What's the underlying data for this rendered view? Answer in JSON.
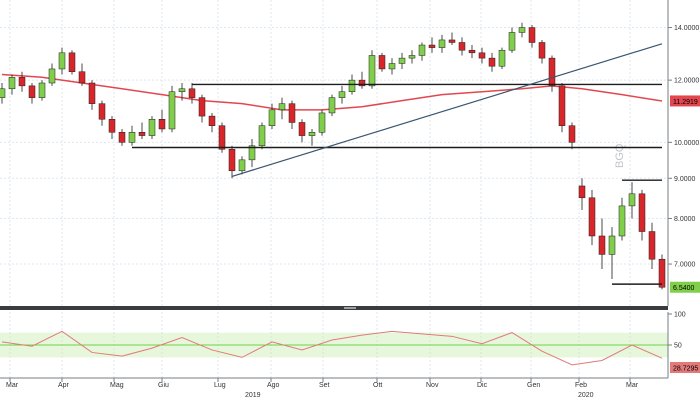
{
  "chart_data": {
    "type": "candlestick",
    "title": "",
    "xlabel": "",
    "ylabel": "",
    "grid": true,
    "price_scale": "log",
    "ylim": [
      6.3,
      15.0
    ],
    "y_ticks": [
      "14.0000",
      "12.0000",
      "10.0000",
      "9.0000",
      "8.0000",
      "7.0000"
    ],
    "y_tick_values": [
      14,
      12,
      10,
      9,
      8,
      7
    ],
    "x_months": [
      "Mar",
      "Apr",
      "Mag",
      "Giu",
      "Lug",
      "Ago",
      "Set",
      "Ott",
      "Nov",
      "Dic",
      "Gen",
      "Feb",
      "Mar"
    ],
    "years": [
      "2019",
      "2020"
    ],
    "last_price_label": "6.5400",
    "moving_average_label": "11.2919",
    "oscillator_label": "28.7295",
    "oscillator_ticks": [
      "100",
      "50"
    ],
    "watermark": "BGQ",
    "series": [
      {
        "type": "ohlc",
        "values": [
          [
            0,
            11.4,
            11.9,
            11.2,
            11.7
          ],
          [
            1,
            11.7,
            12.2,
            11.5,
            12.1
          ],
          [
            2,
            12.1,
            12.3,
            11.6,
            11.8
          ],
          [
            3,
            11.8,
            11.9,
            11.2,
            11.4
          ],
          [
            4,
            11.4,
            12.0,
            11.3,
            11.9
          ],
          [
            5,
            11.9,
            12.6,
            11.8,
            12.4
          ],
          [
            6,
            12.4,
            13.2,
            12.2,
            13.0
          ],
          [
            7,
            13.0,
            13.1,
            12.2,
            12.3
          ],
          [
            8,
            12.3,
            12.6,
            11.8,
            11.9
          ],
          [
            9,
            11.9,
            12.0,
            11.0,
            11.2
          ],
          [
            10,
            11.2,
            11.3,
            10.5,
            10.7
          ],
          [
            11,
            10.7,
            10.8,
            10.1,
            10.3
          ],
          [
            12,
            10.3,
            10.4,
            9.9,
            10.0
          ],
          [
            13,
            10.0,
            10.5,
            9.9,
            10.3
          ],
          [
            14,
            10.3,
            10.6,
            10.1,
            10.2
          ],
          [
            15,
            10.2,
            10.8,
            10.1,
            10.7
          ],
          [
            16,
            10.7,
            11.0,
            10.3,
            10.4
          ],
          [
            17,
            10.4,
            11.8,
            10.3,
            11.6
          ],
          [
            18,
            11.6,
            11.9,
            11.3,
            11.7
          ],
          [
            19,
            11.7,
            11.9,
            11.2,
            11.4
          ],
          [
            20,
            11.4,
            11.5,
            10.6,
            10.8
          ],
          [
            21,
            10.8,
            10.9,
            10.3,
            10.5
          ],
          [
            22,
            10.5,
            10.6,
            9.7,
            9.8
          ],
          [
            23,
            9.8,
            9.9,
            9.0,
            9.2
          ],
          [
            24,
            9.2,
            9.6,
            9.1,
            9.5
          ],
          [
            25,
            9.5,
            10.1,
            9.3,
            9.9
          ],
          [
            26,
            9.9,
            10.6,
            9.8,
            10.5
          ],
          [
            27,
            10.5,
            11.2,
            10.4,
            11.0
          ],
          [
            28,
            11.0,
            11.4,
            10.7,
            11.2
          ],
          [
            29,
            11.2,
            11.3,
            10.4,
            10.6
          ],
          [
            30,
            10.6,
            10.7,
            10.0,
            10.2
          ],
          [
            31,
            10.2,
            10.4,
            9.9,
            10.3
          ],
          [
            32,
            10.3,
            11.0,
            10.2,
            10.9
          ],
          [
            33,
            10.9,
            11.5,
            10.8,
            11.4
          ],
          [
            34,
            11.4,
            11.8,
            11.2,
            11.6
          ],
          [
            35,
            11.6,
            12.2,
            11.5,
            12.0
          ],
          [
            36,
            12.0,
            12.3,
            11.7,
            11.8
          ],
          [
            37,
            11.8,
            13.1,
            11.7,
            12.9
          ],
          [
            38,
            12.9,
            13.0,
            12.3,
            12.4
          ],
          [
            39,
            12.4,
            12.8,
            12.2,
            12.6
          ],
          [
            40,
            12.6,
            13.0,
            12.4,
            12.8
          ],
          [
            41,
            12.8,
            13.1,
            12.6,
            12.9
          ],
          [
            42,
            12.9,
            13.4,
            12.7,
            13.3
          ],
          [
            43,
            13.3,
            13.6,
            13.0,
            13.2
          ],
          [
            44,
            13.2,
            13.7,
            13.0,
            13.5
          ],
          [
            45,
            13.5,
            13.8,
            13.3,
            13.4
          ],
          [
            46,
            13.4,
            13.6,
            12.9,
            13.1
          ],
          [
            47,
            13.1,
            13.3,
            12.8,
            13.0
          ],
          [
            48,
            13.0,
            13.2,
            12.6,
            12.8
          ],
          [
            49,
            12.8,
            13.0,
            12.3,
            12.5
          ],
          [
            50,
            12.5,
            13.2,
            12.4,
            13.1
          ],
          [
            51,
            13.1,
            14.0,
            13.0,
            13.8
          ],
          [
            52,
            13.8,
            14.2,
            13.6,
            14.0
          ],
          [
            53,
            14.0,
            14.1,
            13.2,
            13.4
          ],
          [
            54,
            13.4,
            13.5,
            12.6,
            12.8
          ],
          [
            55,
            12.8,
            12.9,
            11.6,
            11.8
          ],
          [
            56,
            11.8,
            11.9,
            10.3,
            10.5
          ],
          [
            57,
            10.5,
            10.6,
            9.8,
            10.0
          ],
          [
            58,
            8.8,
            9.0,
            8.2,
            8.5
          ],
          [
            59,
            8.5,
            8.7,
            7.4,
            7.6
          ],
          [
            60,
            7.6,
            8.0,
            6.9,
            7.2
          ],
          [
            61,
            7.2,
            7.8,
            6.7,
            7.6
          ],
          [
            62,
            7.6,
            8.5,
            7.5,
            8.3
          ],
          [
            63,
            8.3,
            8.9,
            8.0,
            8.6
          ],
          [
            64,
            8.6,
            8.7,
            7.5,
            7.7
          ],
          [
            65,
            7.7,
            7.9,
            6.9,
            7.1
          ],
          [
            66,
            7.1,
            7.2,
            6.5,
            6.54
          ]
        ]
      },
      {
        "type": "moving_average",
        "color": "#e2474f",
        "values": [
          [
            0,
            12.2
          ],
          [
            4,
            12.1
          ],
          [
            8,
            11.9
          ],
          [
            12,
            11.7
          ],
          [
            16,
            11.5
          ],
          [
            20,
            11.3
          ],
          [
            24,
            11.2
          ],
          [
            28,
            11.0
          ],
          [
            32,
            11.0
          ],
          [
            36,
            11.1
          ],
          [
            40,
            11.3
          ],
          [
            44,
            11.5
          ],
          [
            48,
            11.6
          ],
          [
            52,
            11.7
          ],
          [
            55,
            11.8
          ],
          [
            58,
            11.7
          ],
          [
            62,
            11.5
          ],
          [
            66,
            11.29
          ]
        ]
      },
      {
        "type": "oscillator",
        "color": "#e27a7a",
        "ylim": [
          0,
          100
        ],
        "values": [
          [
            0,
            55
          ],
          [
            3,
            48
          ],
          [
            6,
            72
          ],
          [
            9,
            38
          ],
          [
            12,
            32
          ],
          [
            15,
            45
          ],
          [
            18,
            62
          ],
          [
            21,
            42
          ],
          [
            24,
            30
          ],
          [
            27,
            55
          ],
          [
            30,
            42
          ],
          [
            33,
            58
          ],
          [
            36,
            66
          ],
          [
            39,
            72
          ],
          [
            42,
            68
          ],
          [
            45,
            64
          ],
          [
            48,
            52
          ],
          [
            51,
            70
          ],
          [
            54,
            40
          ],
          [
            57,
            18
          ],
          [
            60,
            25
          ],
          [
            63,
            50
          ],
          [
            66,
            28.73
          ]
        ]
      }
    ],
    "annotations": [
      {
        "type": "channel",
        "line_from": [
          19,
          11.85
        ],
        "line_to": [
          66,
          11.85
        ]
      },
      {
        "type": "channel",
        "line_from": [
          13,
          9.85
        ],
        "line_to": [
          66,
          9.85
        ]
      },
      {
        "type": "trendline",
        "from": [
          23,
          9.05
        ],
        "to": [
          66,
          13.35
        ]
      },
      {
        "type": "channel",
        "line_from": [
          62,
          8.95
        ],
        "line_to": [
          66,
          8.95
        ]
      },
      {
        "type": "channel",
        "line_from": [
          61,
          6.6
        ],
        "line_to": [
          66,
          6.6
        ]
      }
    ],
    "colors": {
      "up_candle": "#7fcf4b",
      "down_candle": "#d9262b",
      "last_price_tag": "#7fcf4b",
      "ma_tag": "#e2474f",
      "oscillator_band": "#b9e99b",
      "grid": "#dfe7f0"
    }
  }
}
